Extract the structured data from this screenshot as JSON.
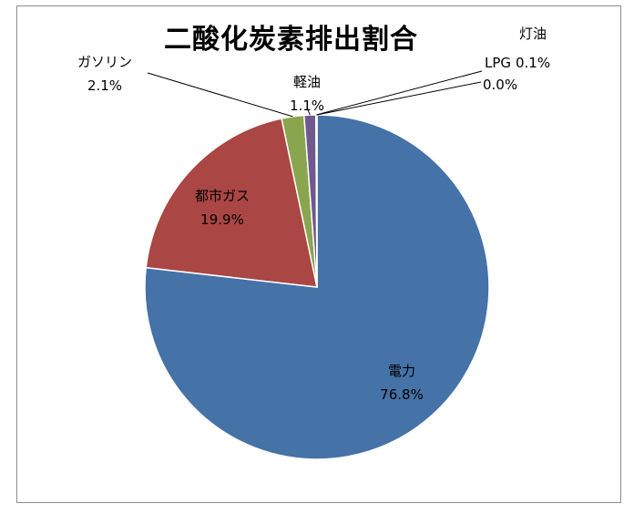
{
  "chart_data": {
    "type": "pie",
    "title": "二酸化炭素排出割合",
    "slices": [
      {
        "label": "電力",
        "value": 76.8,
        "value_label": "76.8%",
        "color": "#4572a7"
      },
      {
        "label": "都市ガス",
        "value": 19.9,
        "value_label": "19.9%",
        "color": "#aa4643"
      },
      {
        "label": "ガソリン",
        "value": 2.1,
        "value_label": "2.1%",
        "color": "#89a54e"
      },
      {
        "label": "軽油",
        "value": 1.1,
        "value_label": "1.1%",
        "color": "#71588f"
      },
      {
        "label": "灯油",
        "value": 0.1,
        "value_label": "0.1%",
        "color": "#4198af"
      },
      {
        "label": "LPG",
        "value": 0.0,
        "value_label": "0.0%",
        "color": "#db843d"
      }
    ],
    "start_angle": "12 o'clock",
    "direction": "clockwise",
    "legend": "none"
  }
}
